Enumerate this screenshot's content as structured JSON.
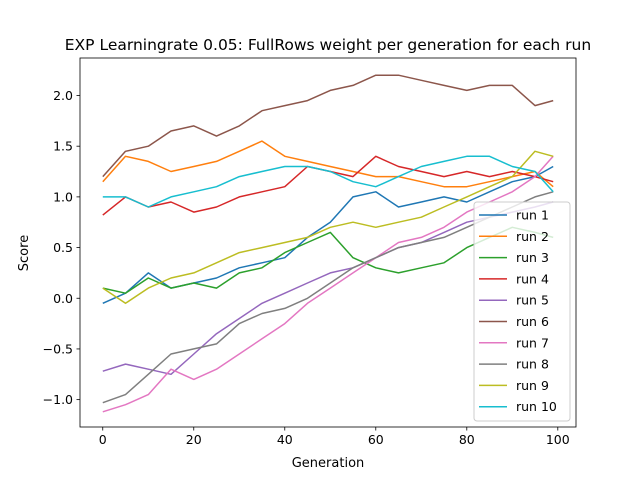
{
  "chart_data": {
    "type": "line",
    "title": "EXP Learningrate 0.05: FullRows weight per generation for each run",
    "xlabel": "Generation",
    "ylabel": "Score",
    "xlim": [
      -5,
      104
    ],
    "ylim": [
      -1.27,
      2.37
    ],
    "xticks": [
      0,
      20,
      40,
      60,
      80,
      100
    ],
    "yticks": [
      -1.0,
      -0.5,
      0.0,
      0.5,
      1.0,
      1.5,
      2.0
    ],
    "xtick_labels": [
      "0",
      "20",
      "40",
      "60",
      "80",
      "100"
    ],
    "ytick_labels": [
      "−1.0",
      "−0.5",
      "0.0",
      "0.5",
      "1.0",
      "1.5",
      "2.0"
    ],
    "grid": false,
    "legend_position": "lower right",
    "series": [
      {
        "name": "run 1",
        "color": "#1f77b4",
        "x": [
          0,
          5,
          10,
          15,
          20,
          25,
          30,
          35,
          40,
          45,
          50,
          55,
          60,
          65,
          70,
          75,
          80,
          85,
          90,
          95,
          99
        ],
        "values": [
          -0.05,
          0.05,
          0.25,
          0.1,
          0.15,
          0.2,
          0.3,
          0.35,
          0.4,
          0.6,
          0.75,
          1.0,
          1.05,
          0.9,
          0.95,
          1.0,
          0.95,
          1.05,
          1.15,
          1.2,
          1.3
        ]
      },
      {
        "name": "run 2",
        "color": "#ff7f0e",
        "x": [
          0,
          5,
          10,
          15,
          20,
          25,
          30,
          35,
          40,
          45,
          50,
          55,
          60,
          65,
          70,
          75,
          80,
          85,
          90,
          95,
          99
        ],
        "values": [
          1.15,
          1.4,
          1.35,
          1.25,
          1.3,
          1.35,
          1.45,
          1.55,
          1.4,
          1.35,
          1.3,
          1.25,
          1.2,
          1.2,
          1.15,
          1.1,
          1.1,
          1.15,
          1.2,
          1.25,
          1.1
        ]
      },
      {
        "name": "run 3",
        "color": "#2ca02c",
        "x": [
          0,
          5,
          10,
          15,
          20,
          25,
          30,
          35,
          40,
          45,
          50,
          55,
          60,
          65,
          70,
          75,
          80,
          85,
          90,
          95,
          99
        ],
        "values": [
          0.1,
          0.05,
          0.2,
          0.1,
          0.15,
          0.1,
          0.25,
          0.3,
          0.45,
          0.55,
          0.65,
          0.4,
          0.3,
          0.25,
          0.3,
          0.35,
          0.5,
          0.6,
          0.7,
          0.65,
          0.6
        ]
      },
      {
        "name": "run 4",
        "color": "#d62728",
        "x": [
          0,
          5,
          10,
          15,
          20,
          25,
          30,
          35,
          40,
          45,
          50,
          55,
          60,
          65,
          70,
          75,
          80,
          85,
          90,
          95,
          99
        ],
        "values": [
          0.82,
          1.0,
          0.9,
          0.95,
          0.85,
          0.9,
          1.0,
          1.05,
          1.1,
          1.3,
          1.25,
          1.2,
          1.4,
          1.3,
          1.25,
          1.2,
          1.25,
          1.2,
          1.25,
          1.2,
          1.15
        ]
      },
      {
        "name": "run 5",
        "color": "#9467bd",
        "x": [
          0,
          5,
          10,
          15,
          20,
          25,
          30,
          35,
          40,
          45,
          50,
          55,
          60,
          65,
          70,
          75,
          80,
          85,
          90,
          95,
          99
        ],
        "values": [
          -0.72,
          -0.65,
          -0.7,
          -0.75,
          -0.55,
          -0.35,
          -0.2,
          -0.05,
          0.05,
          0.15,
          0.25,
          0.3,
          0.4,
          0.5,
          0.55,
          0.65,
          0.75,
          0.8,
          0.85,
          0.9,
          0.95
        ]
      },
      {
        "name": "run 6",
        "color": "#8c564b",
        "x": [
          0,
          5,
          10,
          15,
          20,
          25,
          30,
          35,
          40,
          45,
          50,
          55,
          60,
          65,
          70,
          75,
          80,
          85,
          90,
          95,
          99
        ],
        "values": [
          1.2,
          1.45,
          1.5,
          1.65,
          1.7,
          1.6,
          1.7,
          1.85,
          1.9,
          1.95,
          2.05,
          2.1,
          2.2,
          2.2,
          2.15,
          2.1,
          2.05,
          2.1,
          2.1,
          1.9,
          1.95
        ]
      },
      {
        "name": "run 7",
        "color": "#e377c2",
        "x": [
          0,
          5,
          10,
          15,
          20,
          25,
          30,
          35,
          40,
          45,
          50,
          55,
          60,
          65,
          70,
          75,
          80,
          85,
          90,
          95,
          99
        ],
        "values": [
          -1.12,
          -1.05,
          -0.95,
          -0.7,
          -0.8,
          -0.7,
          -0.55,
          -0.4,
          -0.25,
          -0.05,
          0.1,
          0.25,
          0.4,
          0.55,
          0.6,
          0.7,
          0.85,
          0.95,
          1.05,
          1.2,
          1.4
        ]
      },
      {
        "name": "run 8",
        "color": "#7f7f7f",
        "x": [
          0,
          5,
          10,
          15,
          20,
          25,
          30,
          35,
          40,
          45,
          50,
          55,
          60,
          65,
          70,
          75,
          80,
          85,
          90,
          95,
          99
        ],
        "values": [
          -1.03,
          -0.95,
          -0.75,
          -0.55,
          -0.5,
          -0.45,
          -0.25,
          -0.15,
          -0.1,
          0.0,
          0.15,
          0.3,
          0.4,
          0.5,
          0.55,
          0.6,
          0.7,
          0.8,
          0.9,
          1.0,
          1.05
        ]
      },
      {
        "name": "run 9",
        "color": "#bcbd22",
        "x": [
          0,
          5,
          10,
          15,
          20,
          25,
          30,
          35,
          40,
          45,
          50,
          55,
          60,
          65,
          70,
          75,
          80,
          85,
          90,
          95,
          99
        ],
        "values": [
          0.1,
          -0.05,
          0.1,
          0.2,
          0.25,
          0.35,
          0.45,
          0.5,
          0.55,
          0.6,
          0.7,
          0.75,
          0.7,
          0.75,
          0.8,
          0.9,
          1.0,
          1.1,
          1.2,
          1.45,
          1.4
        ]
      },
      {
        "name": "run 10",
        "color": "#17becf",
        "x": [
          0,
          5,
          10,
          15,
          20,
          25,
          30,
          35,
          40,
          45,
          50,
          55,
          60,
          65,
          70,
          75,
          80,
          85,
          90,
          95,
          99
        ],
        "values": [
          1.0,
          1.0,
          0.9,
          1.0,
          1.05,
          1.1,
          1.2,
          1.25,
          1.3,
          1.3,
          1.25,
          1.15,
          1.1,
          1.2,
          1.3,
          1.35,
          1.4,
          1.4,
          1.3,
          1.25,
          1.05
        ]
      }
    ]
  }
}
